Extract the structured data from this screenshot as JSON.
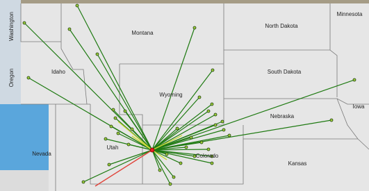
{
  "map": {
    "labels": [
      "Washington",
      "Montana",
      "North Dakota",
      "Minnesota",
      "Oregon",
      "Idaho",
      "South Dakota",
      "Wyoming",
      "Iowa",
      "Nebraska",
      "Nevada",
      "Utah",
      "Colorado",
      "Kansas"
    ]
  }
}
